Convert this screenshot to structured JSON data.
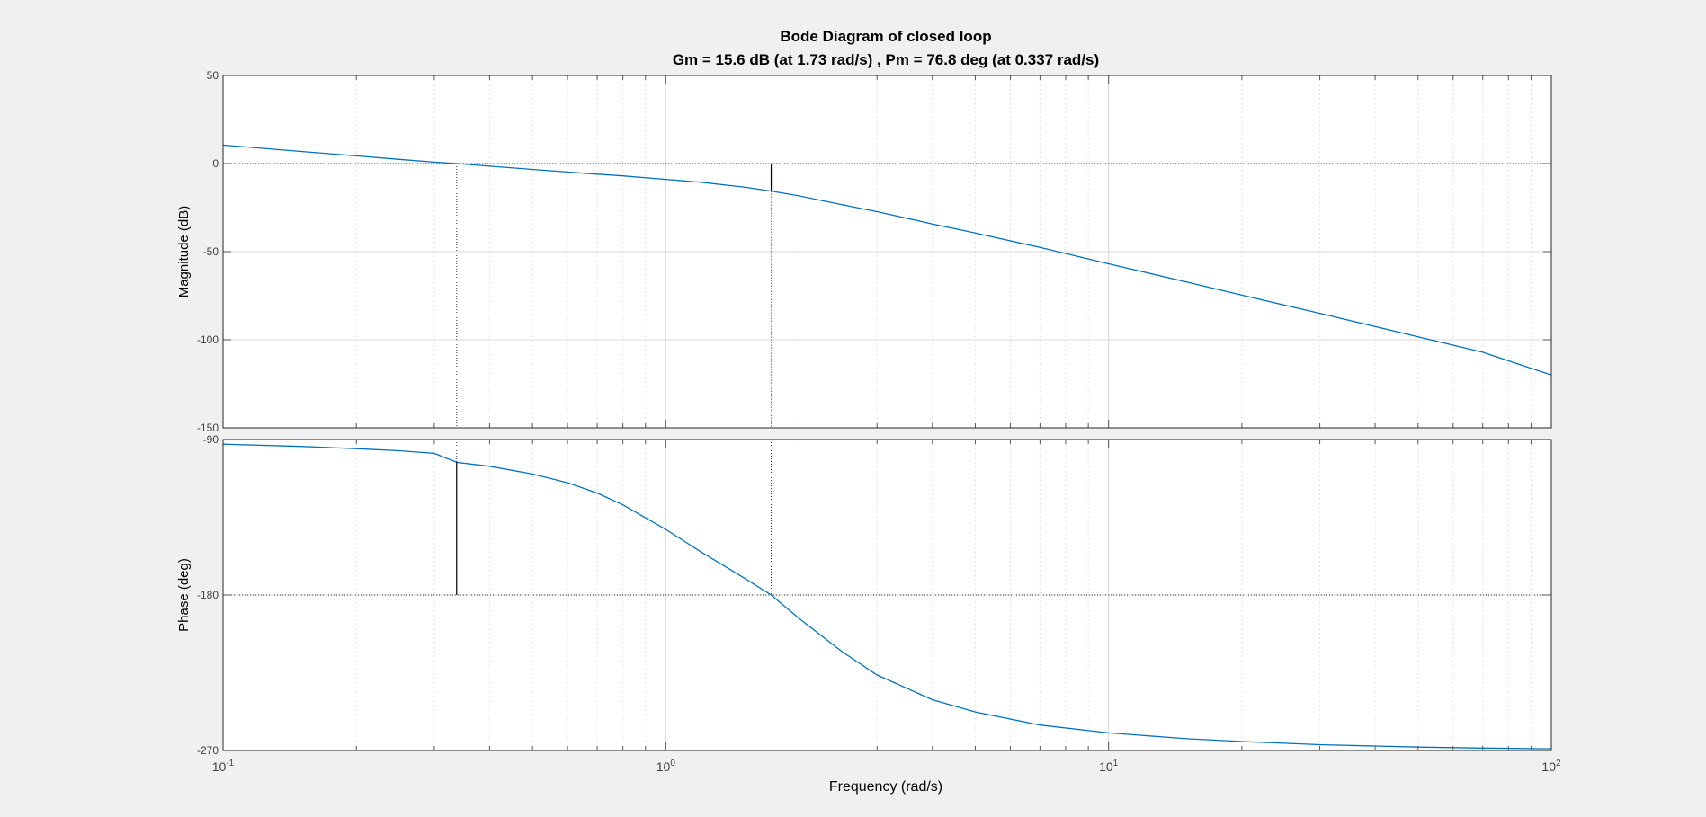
{
  "figure": {
    "background": "#f0f0f0",
    "axes_background": "#ffffff",
    "line_color": "#0072BD",
    "grid_color": "#e3e3e3",
    "margin_line_color": "#000000",
    "tick_label_color": "#404040"
  },
  "chart_data": {
    "type": "line",
    "title": "Bode Diagram of closed loop",
    "subtitle": "Gm = 15.6 dB (at 1.73 rad/s) ,  Pm = 76.8 deg (at 0.337 rad/s)",
    "xlabel": "Frequency  (rad/s)",
    "x_scale": "log",
    "xlim": [
      0.1,
      100
    ],
    "x_ticks": [
      {
        "base": "10",
        "exp": "-1"
      },
      {
        "base": "10",
        "exp": "0"
      },
      {
        "base": "10",
        "exp": "1"
      },
      {
        "base": "10",
        "exp": "2"
      }
    ],
    "grid": true,
    "gain_margin": {
      "value_db": 15.6,
      "frequency": 1.73
    },
    "phase_margin": {
      "value_deg": 76.8,
      "frequency": 0.337
    },
    "panels": [
      {
        "name": "magnitude",
        "ylabel": "Magnitude (dB)",
        "ylim": [
          -150,
          50
        ],
        "y_ticks": [
          "50",
          "0",
          "-50",
          "-100",
          "-150"
        ],
        "reference_line": 0,
        "series": [
          {
            "x": [
              0.1,
              0.15,
              0.2,
              0.25,
              0.3,
              0.337,
              0.4,
              0.5,
              0.6,
              0.7,
              0.8,
              1.0,
              1.2,
              1.5,
              1.73,
              2.0,
              2.5,
              3.0,
              4.0,
              5.0,
              7.0,
              10.0,
              15.0,
              20.0,
              30.0,
              50.0,
              70.0,
              100.0
            ],
            "y": [
              10.5,
              6.9,
              4.4,
              2.4,
              0.8,
              0.0,
              -1.5,
              -3.3,
              -4.8,
              -6.0,
              -7.0,
              -9.0,
              -10.6,
              -13.3,
              -15.6,
              -18.3,
              -23.3,
              -27.3,
              -34.3,
              -39.4,
              -47.6,
              -56.9,
              -67.2,
              -74.7,
              -85.0,
              -98.3,
              -107.1,
              -120.0
            ]
          }
        ]
      },
      {
        "name": "phase",
        "ylabel": "Phase (deg)",
        "ylim": [
          -270,
          -90
        ],
        "y_ticks": [
          "-90",
          "-180",
          "-270"
        ],
        "reference_line": -180,
        "series": [
          {
            "x": [
              0.1,
              0.15,
              0.2,
              0.25,
              0.3,
              0.337,
              0.4,
              0.5,
              0.6,
              0.7,
              0.8,
              1.0,
              1.2,
              1.5,
              1.73,
              2.0,
              2.5,
              3.0,
              4.0,
              5.0,
              7.0,
              10.0,
              15.0,
              20.0,
              30.0,
              50.0,
              70.0,
              100.0
            ],
            "y": [
              -92.7,
              -94.0,
              -95.3,
              -96.5,
              -98.0,
              -103.2,
              -105.5,
              -110.0,
              -115.0,
              -121.0,
              -127.8,
              -142.0,
              -155.0,
              -170.0,
              -180.0,
              -193.5,
              -212.8,
              -226.3,
              -240.6,
              -247.7,
              -255.3,
              -259.8,
              -263.2,
              -264.8,
              -266.6,
              -268.0,
              -268.6,
              -269.0
            ]
          }
        ]
      }
    ]
  }
}
